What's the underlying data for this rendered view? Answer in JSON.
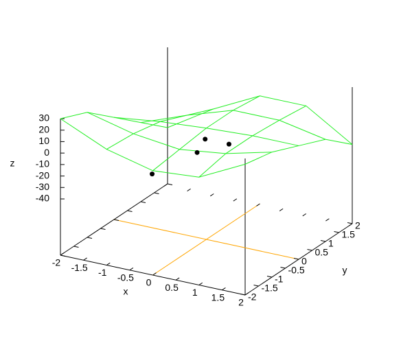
{
  "chart_data": {
    "type": "surface",
    "x_label": "x",
    "y_label": "y",
    "z_label": "z",
    "x": [
      -2,
      -1,
      0,
      1,
      2
    ],
    "y": [
      -2,
      -1,
      0,
      1,
      2
    ],
    "z": [
      [
        30,
        12,
        2,
        5,
        25
      ],
      [
        20,
        10,
        5,
        10,
        20
      ],
      [
        0,
        5,
        8,
        10,
        10
      ],
      [
        -20,
        -5,
        8,
        8,
        0
      ],
      [
        -40,
        -15,
        5,
        5,
        -20
      ]
    ],
    "surface_color": "#22ee22",
    "points": {
      "x": [
        -0.2,
        0.2,
        -0.2,
        -1
      ],
      "y": [
        0.3,
        0.5,
        0,
        -0.3
      ],
      "z": [
        -8,
        -12,
        -15,
        -36
      ],
      "color": "#000000"
    },
    "zeroaxis": true,
    "zeroaxis_color": "#ffa500",
    "xlim": [
      -2,
      2
    ],
    "ylim": [
      -2,
      2
    ],
    "zlim": [
      -40,
      30
    ],
    "xticks": [
      -2,
      -1.5,
      -1,
      -0.5,
      0,
      0.5,
      1,
      1.5,
      2
    ],
    "yticks": [
      -2,
      -1.5,
      -1,
      -0.5,
      0,
      0.5,
      1,
      1.5,
      2
    ],
    "zticks": [
      -40,
      -30,
      -20,
      -10,
      0,
      10,
      20,
      30
    ]
  }
}
